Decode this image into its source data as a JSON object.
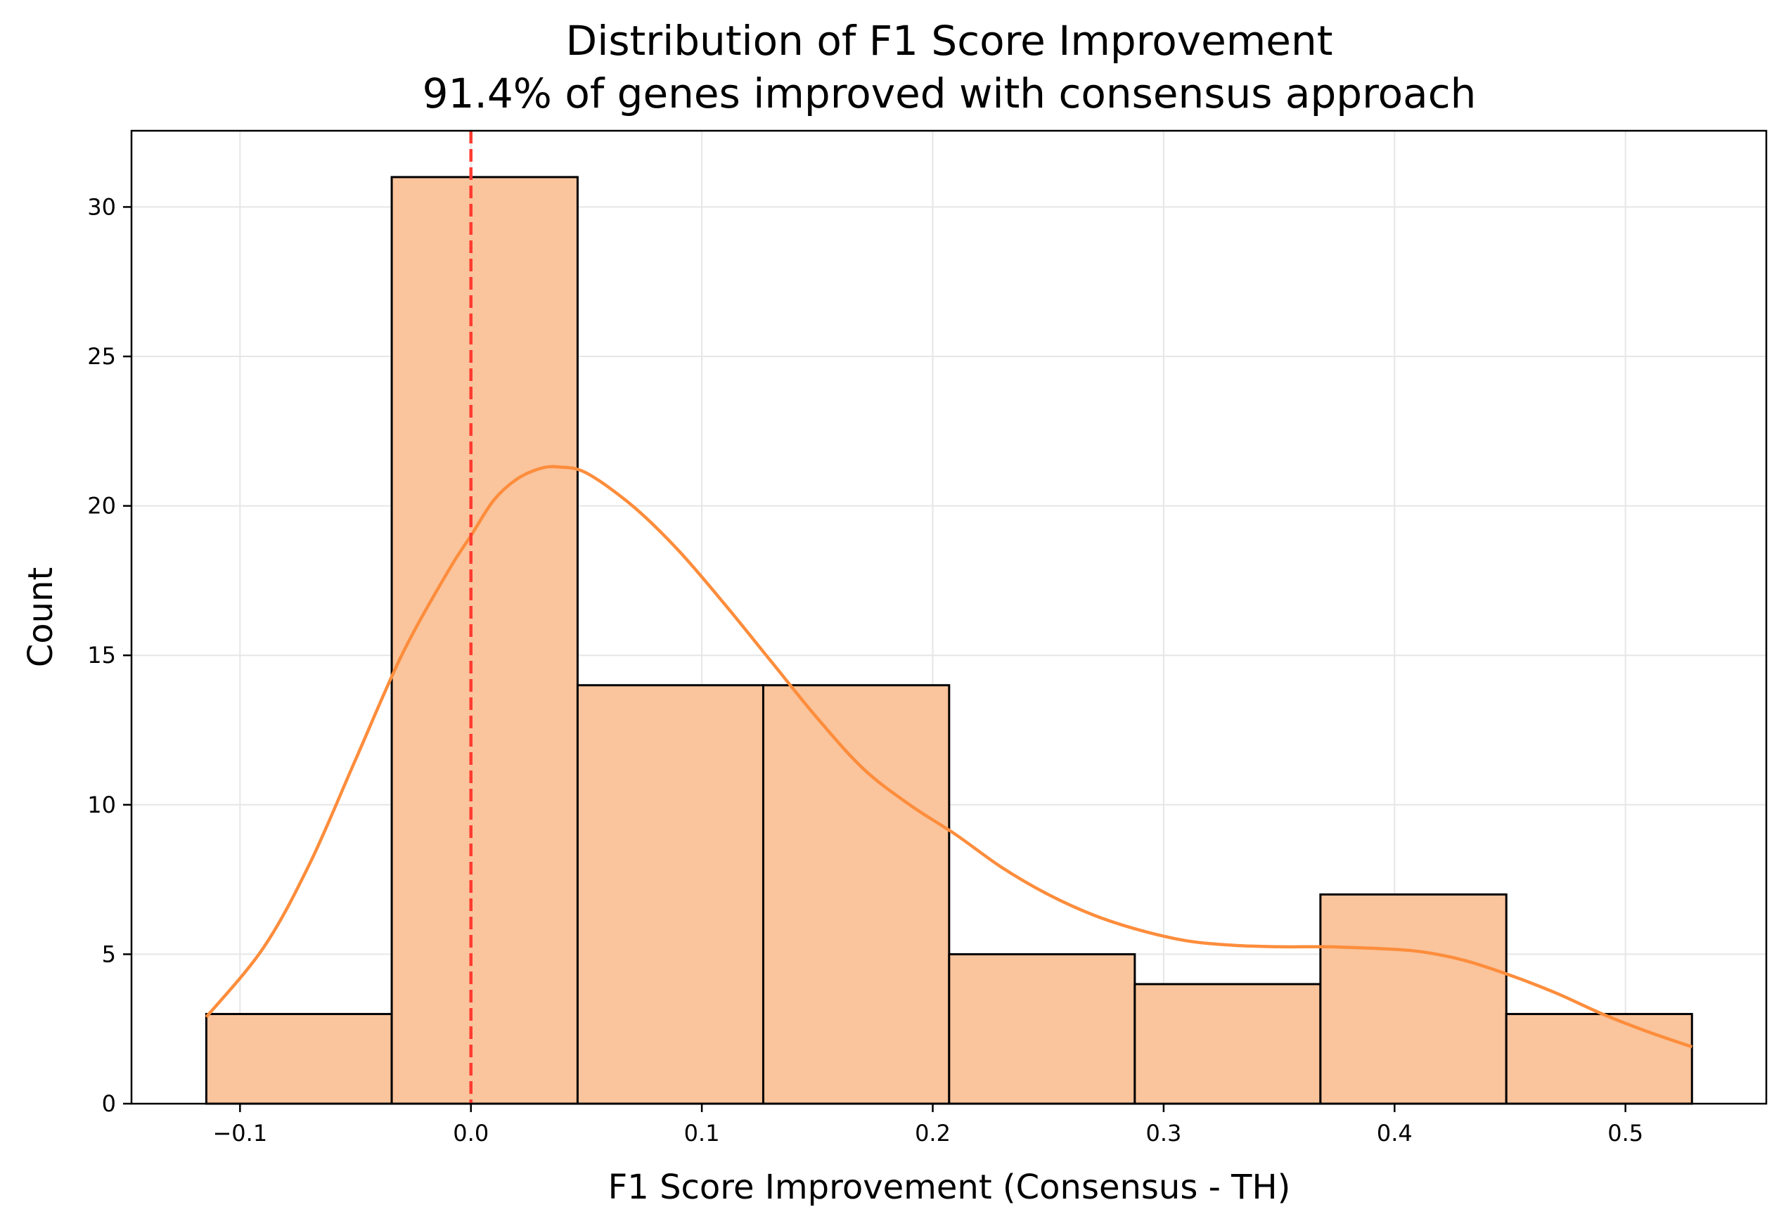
{
  "chart_data": {
    "type": "bar",
    "title": "Distribution of F1 Score Improvement",
    "subtitle": "91.4% of genes improved with consensus approach",
    "xlabel": "F1 Score Improvement (Consensus - TH)",
    "ylabel": "Count",
    "xlim": [
      -0.147,
      0.561
    ],
    "ylim": [
      0,
      32.55
    ],
    "xticks": [
      -0.1,
      0.0,
      0.1,
      0.2,
      0.3,
      0.4,
      0.5
    ],
    "xtick_labels": [
      "−0.1",
      "0.0",
      "0.1",
      "0.2",
      "0.3",
      "0.4",
      "0.5"
    ],
    "yticks": [
      0,
      5,
      10,
      15,
      20,
      25,
      30
    ],
    "ytick_labels": [
      "0",
      "5",
      "10",
      "15",
      "20",
      "25",
      "30"
    ],
    "grid": true,
    "bins": [
      {
        "x0": -0.1146,
        "x1": -0.0343,
        "count": 3
      },
      {
        "x0": -0.0343,
        "x1": 0.0462,
        "count": 31
      },
      {
        "x0": 0.0462,
        "x1": 0.1266,
        "count": 14
      },
      {
        "x0": 0.1266,
        "x1": 0.2071,
        "count": 14
      },
      {
        "x0": 0.2071,
        "x1": 0.2875,
        "count": 5
      },
      {
        "x0": 0.2875,
        "x1": 0.3679,
        "count": 4
      },
      {
        "x0": 0.3679,
        "x1": 0.4484,
        "count": 7
      },
      {
        "x0": 0.4484,
        "x1": 0.5288,
        "count": 3
      }
    ],
    "kde": {
      "x": [
        -0.1146,
        -0.09,
        -0.07,
        -0.05,
        -0.03,
        -0.01,
        0.0,
        0.01,
        0.02,
        0.03,
        0.038,
        0.05,
        0.07,
        0.09,
        0.11,
        0.13,
        0.15,
        0.17,
        0.19,
        0.21,
        0.23,
        0.25,
        0.27,
        0.29,
        0.31,
        0.33,
        0.35,
        0.37,
        0.39,
        0.41,
        0.43,
        0.45,
        0.47,
        0.49,
        0.51,
        0.5288
      ],
      "y": [
        2.9,
        5.2,
        8.0,
        11.5,
        15.0,
        17.8,
        19.0,
        20.2,
        20.9,
        21.25,
        21.3,
        21.1,
        20.0,
        18.5,
        16.7,
        14.8,
        12.9,
        11.2,
        10.0,
        9.0,
        7.9,
        7.0,
        6.3,
        5.8,
        5.45,
        5.3,
        5.25,
        5.25,
        5.2,
        5.1,
        4.8,
        4.3,
        3.7,
        3.0,
        2.4,
        1.9
      ]
    },
    "reference_line_x": 0.0,
    "colors": {
      "bar_fill": "#fac49c",
      "bar_edge": "#000000",
      "kde_line": "#fd8d3c",
      "reference_line": "#ff3b30",
      "grid": "#e6e6e6"
    }
  }
}
